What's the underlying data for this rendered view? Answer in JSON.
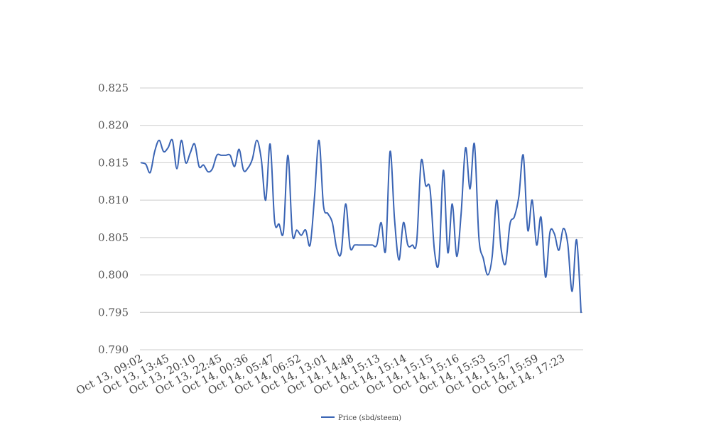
{
  "chart_data": {
    "type": "line",
    "title": "",
    "xlabel": "",
    "ylabel": "",
    "ylim": [
      0.79,
      0.825
    ],
    "yticks": [
      "0.825",
      "0.820",
      "0.815",
      "0.810",
      "0.805",
      "0.800",
      "0.795",
      "0.790"
    ],
    "xtick_labels": [
      "Oct 13, 09:02",
      "Oct 13, 13:45",
      "Oct 13, 20:10",
      "Oct 13, 22:45",
      "Oct 14, 00:36",
      "Oct 14, 05:47",
      "Oct 14, 06:52",
      "Oct 14, 13:01",
      "Oct 14, 14:48",
      "Oct 14, 15:13",
      "Oct 14, 15:14",
      "Oct 14, 15:15",
      "Oct 14, 15:16",
      "Oct 14, 15:53",
      "Oct 14, 15:57",
      "Oct 14, 15:59",
      "Oct 14, 17:23"
    ],
    "grid": true,
    "legend_position": "bottom",
    "colors": {
      "series": "#3a64b4",
      "grid": "#cccccc"
    },
    "series": [
      {
        "name": "Price (sbd/steem)",
        "values": [
          0.815,
          0.8148,
          0.8137,
          0.8165,
          0.818,
          0.8165,
          0.817,
          0.818,
          0.8142,
          0.818,
          0.815,
          0.8163,
          0.8175,
          0.8145,
          0.8147,
          0.8138,
          0.8142,
          0.816,
          0.816,
          0.816,
          0.816,
          0.8145,
          0.8168,
          0.814,
          0.8143,
          0.8155,
          0.818,
          0.8155,
          0.81,
          0.8175,
          0.8072,
          0.8068,
          0.8058,
          0.816,
          0.8055,
          0.806,
          0.8053,
          0.806,
          0.804,
          0.8105,
          0.818,
          0.8093,
          0.8082,
          0.807,
          0.8035,
          0.803,
          0.8095,
          0.8037,
          0.804,
          0.804,
          0.804,
          0.804,
          0.804,
          0.804,
          0.807,
          0.8033,
          0.8165,
          0.8075,
          0.802,
          0.807,
          0.804,
          0.804,
          0.8045,
          0.8152,
          0.812,
          0.8115,
          0.8032,
          0.8018,
          0.814,
          0.803,
          0.8095,
          0.8025,
          0.8082,
          0.817,
          0.8115,
          0.8175,
          0.805,
          0.8022,
          0.8,
          0.8025,
          0.81,
          0.8035,
          0.8015,
          0.8068,
          0.8078,
          0.8105,
          0.816,
          0.806,
          0.81,
          0.804,
          0.8077,
          0.7997,
          0.8057,
          0.8055,
          0.8033,
          0.8062,
          0.8042,
          0.7978,
          0.8047,
          0.795
        ]
      }
    ]
  }
}
